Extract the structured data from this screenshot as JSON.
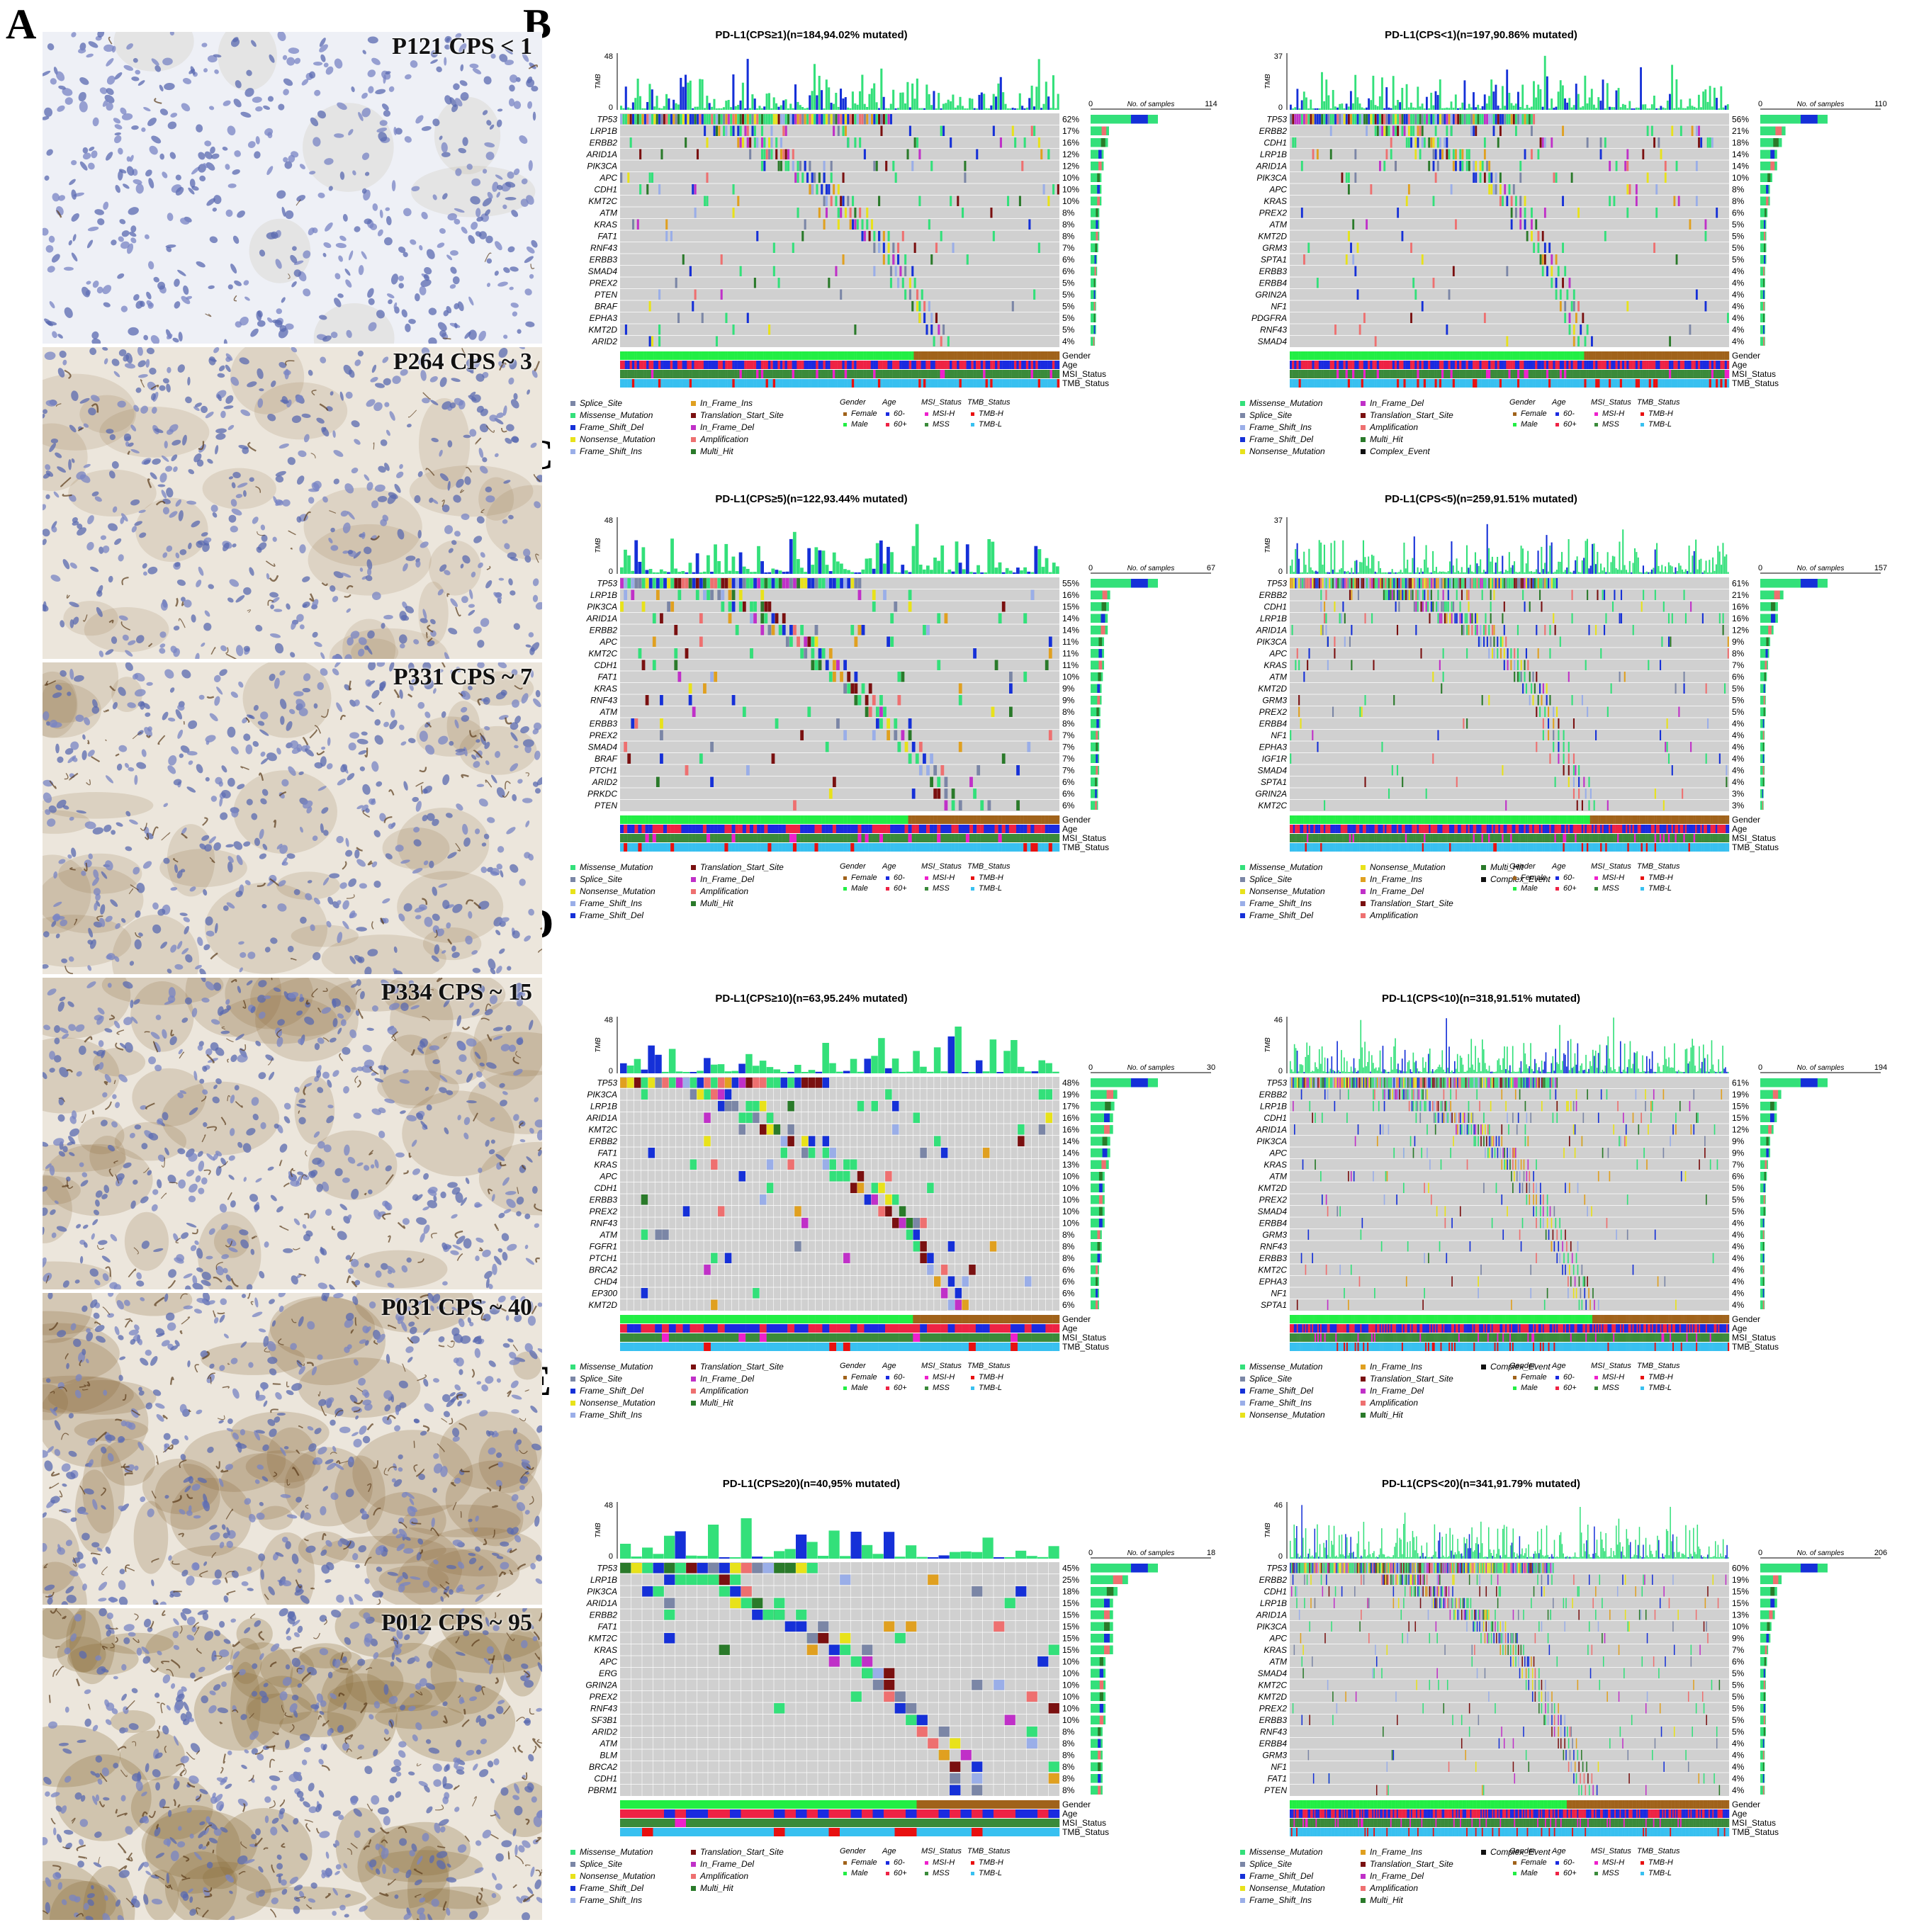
{
  "panel_letters": [
    "A",
    "B",
    "C",
    "D",
    "E"
  ],
  "ihc_images": [
    {
      "label": "P121 CPS < 1"
    },
    {
      "label": "P264 CPS ~ 3"
    },
    {
      "label": "P331 CPS ~ 7"
    },
    {
      "label": "P334 CPS ~ 15"
    },
    {
      "label": "P031 CPS ~ 40"
    },
    {
      "label": "P012 CPS ~ 95"
    }
  ],
  "colors": {
    "Missense_Mutation": "#33e07a",
    "Splice_Site": "#7b86a6",
    "Frame_Shift_Del": "#1530d8",
    "Nonsense_Mutation": "#e8e21a",
    "Frame_Shift_Ins": "#9aaee8",
    "In_Frame_Ins": "#e0a020",
    "In_Frame_Del": "#c030c8",
    "Translation_Start_Site": "#7a1010",
    "Amplification": "#ee7070",
    "Multi_Hit": "#2a7a2a",
    "Complex_Event": "#111111",
    "background": "#d0d0d0",
    "Female": "#a0621a",
    "Male": "#22ee44",
    "Age_60-": "#1a2ae0",
    "Age_60+": "#ee2244",
    "MSI-H": "#ee20cc",
    "MSS": "#3a8a3a",
    "TMB-H": "#e81010",
    "TMB-L": "#38c0f0"
  },
  "tracks": [
    "Gender",
    "Age",
    "MSI_Status",
    "TMB_Status"
  ],
  "axis_labels": {
    "tmb": "TMB",
    "samples": "No. of samples"
  },
  "legend_categories": {
    "gender": "Gender",
    "age": "Age",
    "msi": "MSI_Status",
    "tmb": "TMB_Status"
  },
  "legend_values": {
    "female": "Female",
    "male": "Male",
    "age_lo": "60-",
    "age_hi": "60+",
    "msih": "MSI-H",
    "mss": "MSS",
    "tmbh": "TMB-H",
    "tmbl": "TMB-L"
  },
  "plots": [
    {
      "title": "PD-L1(CPS≥1)(n=184,94.02% mutated)",
      "tmb_max": "48",
      "samples_max": "114",
      "samples_min": "0",
      "genes": [
        "TP53",
        "LRP1B",
        "ERBB2",
        "ARID1A",
        "PIK3CA",
        "APC",
        "CDH1",
        "KMT2C",
        "ATM",
        "KRAS",
        "FAT1",
        "RNF43",
        "ERBB3",
        "SMAD4",
        "PREX2",
        "PTEN",
        "BRAF",
        "EPHA3",
        "KMT2D",
        "ARID2"
      ],
      "pct": [
        "62%",
        "17%",
        "16%",
        "12%",
        "12%",
        "10%",
        "10%",
        "10%",
        "8%",
        "8%",
        "8%",
        "7%",
        "6%",
        "6%",
        "5%",
        "5%",
        "5%",
        "5%",
        "5%",
        "4%"
      ],
      "legend": [
        "Splice_Site",
        "Missense_Mutation",
        "Frame_Shift_Del",
        "Nonsense_Mutation",
        "Frame_Shift_Ins",
        "In_Frame_Ins",
        "Translation_Start_Site",
        "In_Frame_Del",
        "Amplification",
        "Multi_Hit"
      ]
    },
    {
      "title": "PD-L1(CPS<1)(n=197,90.86% mutated)",
      "tmb_max": "37",
      "samples_max": "110",
      "samples_min": "0",
      "genes": [
        "TP53",
        "ERBB2",
        "CDH1",
        "LRP1B",
        "ARID1A",
        "PIK3CA",
        "APC",
        "KRAS",
        "PREX2",
        "ATM",
        "KMT2D",
        "GRM3",
        "SPTA1",
        "ERBB3",
        "ERBB4",
        "GRIN2A",
        "NF1",
        "PDGFRA",
        "RNF43",
        "SMAD4"
      ],
      "pct": [
        "56%",
        "21%",
        "18%",
        "14%",
        "14%",
        "10%",
        "8%",
        "8%",
        "6%",
        "5%",
        "5%",
        "5%",
        "5%",
        "4%",
        "4%",
        "4%",
        "4%",
        "4%",
        "4%",
        "4%"
      ],
      "legend": [
        "Missense_Mutation",
        "Splice_Site",
        "Frame_Shift_Ins",
        "Frame_Shift_Del",
        "Nonsense_Mutation",
        "In_Frame_Del",
        "Translation_Start_Site",
        "Amplification",
        "Multi_Hit",
        "Complex_Event"
      ]
    },
    {
      "title": "PD-L1(CPS≥5)(n=122,93.44% mutated)",
      "tmb_max": "48",
      "samples_max": "67",
      "samples_min": "0",
      "genes": [
        "TP53",
        "LRP1B",
        "PIK3CA",
        "ARID1A",
        "ERBB2",
        "APC",
        "KMT2C",
        "CDH1",
        "FAT1",
        "KRAS",
        "RNF43",
        "ATM",
        "ERBB3",
        "PREX2",
        "SMAD4",
        "BRAF",
        "PTCH1",
        "ARID2",
        "PRKDC",
        "PTEN"
      ],
      "pct": [
        "55%",
        "16%",
        "15%",
        "14%",
        "14%",
        "11%",
        "11%",
        "11%",
        "10%",
        "9%",
        "9%",
        "8%",
        "8%",
        "7%",
        "7%",
        "7%",
        "7%",
        "6%",
        "6%",
        "6%"
      ],
      "legend": [
        "Missense_Mutation",
        "Splice_Site",
        "Nonsense_Mutation",
        "Frame_Shift_Ins",
        "Frame_Shift_Del",
        "Translation_Start_Site",
        "In_Frame_Del",
        "Amplification",
        "Multi_Hit"
      ]
    },
    {
      "title": "PD-L1(CPS<5)(n=259,91.51% mutated)",
      "tmb_max": "37",
      "samples_max": "157",
      "samples_min": "0",
      "genes": [
        "TP53",
        "ERBB2",
        "CDH1",
        "LRP1B",
        "ARID1A",
        "PIK3CA",
        "APC",
        "KRAS",
        "ATM",
        "KMT2D",
        "GRM3",
        "PREX2",
        "ERBB4",
        "NF1",
        "EPHA3",
        "IGF1R",
        "SMAD4",
        "SPTA1",
        "GRIN2A",
        "KMT2C"
      ],
      "pct": [
        "61%",
        "21%",
        "16%",
        "16%",
        "12%",
        "9%",
        "8%",
        "7%",
        "6%",
        "5%",
        "5%",
        "5%",
        "4%",
        "4%",
        "4%",
        "4%",
        "4%",
        "4%",
        "3%",
        "3%"
      ],
      "legend": [
        "Missense_Mutation",
        "Splice_Site",
        "Nonsense_Mutation",
        "Frame_Shift_Ins",
        "Frame_Shift_Del",
        "Nonsense_Mutation",
        "In_Frame_Ins",
        "In_Frame_Del",
        "Translation_Start_Site",
        "Amplification",
        "Multi_Hit",
        "Complex_Event"
      ]
    },
    {
      "title": "PD-L1(CPS≥10)(n=63,95.24% mutated)",
      "tmb_max": "48",
      "samples_max": "30",
      "samples_min": "0",
      "genes": [
        "TP53",
        "PIK3CA",
        "LRP1B",
        "ARID1A",
        "KMT2C",
        "ERBB2",
        "FAT1",
        "KRAS",
        "APC",
        "CDH1",
        "ERBB3",
        "PREX2",
        "RNF43",
        "ATM",
        "FGFR1",
        "PTCH1",
        "BRCA2",
        "CHD4",
        "EP300",
        "KMT2D"
      ],
      "pct": [
        "48%",
        "19%",
        "17%",
        "16%",
        "16%",
        "14%",
        "14%",
        "13%",
        "10%",
        "10%",
        "10%",
        "10%",
        "10%",
        "8%",
        "8%",
        "8%",
        "6%",
        "6%",
        "6%",
        "6%"
      ],
      "legend": [
        "Missense_Mutation",
        "Splice_Site",
        "Frame_Shift_Del",
        "Nonsense_Mutation",
        "Frame_Shift_Ins",
        "Translation_Start_Site",
        "In_Frame_Del",
        "Amplification",
        "Multi_Hit"
      ]
    },
    {
      "title": "PD-L1(CPS<10)(n=318,91.51% mutated)",
      "tmb_max": "46",
      "samples_max": "194",
      "samples_min": "0",
      "genes": [
        "TP53",
        "ERBB2",
        "LRP1B",
        "CDH1",
        "ARID1A",
        "PIK3CA",
        "APC",
        "KRAS",
        "ATM",
        "KMT2D",
        "PREX2",
        "SMAD4",
        "ERBB4",
        "GRM3",
        "RNF43",
        "ERBB3",
        "KMT2C",
        "EPHA3",
        "NF1",
        "SPTA1"
      ],
      "pct": [
        "61%",
        "19%",
        "15%",
        "15%",
        "12%",
        "9%",
        "9%",
        "7%",
        "6%",
        "5%",
        "5%",
        "5%",
        "4%",
        "4%",
        "4%",
        "4%",
        "4%",
        "4%",
        "4%",
        "4%"
      ],
      "legend": [
        "Missense_Mutation",
        "Splice_Site",
        "Frame_Shift_Del",
        "Frame_Shift_Ins",
        "Nonsense_Mutation",
        "In_Frame_Ins",
        "Translation_Start_Site",
        "In_Frame_Del",
        "Amplification",
        "Multi_Hit",
        "Complex_Event"
      ]
    },
    {
      "title": "PD-L1(CPS≥20)(n=40,95% mutated)",
      "tmb_max": "48",
      "samples_max": "18",
      "samples_min": "0",
      "genes": [
        "TP53",
        "LRP1B",
        "PIK3CA",
        "ARID1A",
        "ERBB2",
        "FAT1",
        "KMT2C",
        "KRAS",
        "APC",
        "ERG",
        "GRIN2A",
        "PREX2",
        "RNF43",
        "SF3B1",
        "ARID2",
        "ATM",
        "BLM",
        "BRCA2",
        "CDH1",
        "PBRM1"
      ],
      "pct": [
        "45%",
        "25%",
        "18%",
        "15%",
        "15%",
        "15%",
        "15%",
        "15%",
        "10%",
        "10%",
        "10%",
        "10%",
        "10%",
        "10%",
        "8%",
        "8%",
        "8%",
        "8%",
        "8%",
        "8%"
      ],
      "legend": [
        "Missense_Mutation",
        "Splice_Site",
        "Nonsense_Mutation",
        "Frame_Shift_Del",
        "Frame_Shift_Ins",
        "Translation_Start_Site",
        "In_Frame_Del",
        "Amplification",
        "Multi_Hit"
      ]
    },
    {
      "title": "PD-L1(CPS<20)(n=341,91.79% mutated)",
      "tmb_max": "46",
      "samples_max": "206",
      "samples_min": "0",
      "genes": [
        "TP53",
        "ERBB2",
        "CDH1",
        "LRP1B",
        "ARID1A",
        "PIK3CA",
        "APC",
        "KRAS",
        "ATM",
        "SMAD4",
        "KMT2C",
        "KMT2D",
        "PREX2",
        "ERBB3",
        "RNF43",
        "ERBB4",
        "GRM3",
        "NF1",
        "FAT1",
        "PTEN"
      ],
      "pct": [
        "60%",
        "19%",
        "15%",
        "15%",
        "13%",
        "10%",
        "9%",
        "7%",
        "6%",
        "5%",
        "5%",
        "5%",
        "5%",
        "5%",
        "5%",
        "4%",
        "4%",
        "4%",
        "4%",
        "4%"
      ],
      "legend": [
        "Missense_Mutation",
        "Splice_Site",
        "Frame_Shift_Del",
        "Nonsense_Mutation",
        "Frame_Shift_Ins",
        "In_Frame_Ins",
        "Translation_Start_Site",
        "In_Frame_Del",
        "Amplification",
        "Multi_Hit",
        "Complex_Event"
      ]
    }
  ]
}
